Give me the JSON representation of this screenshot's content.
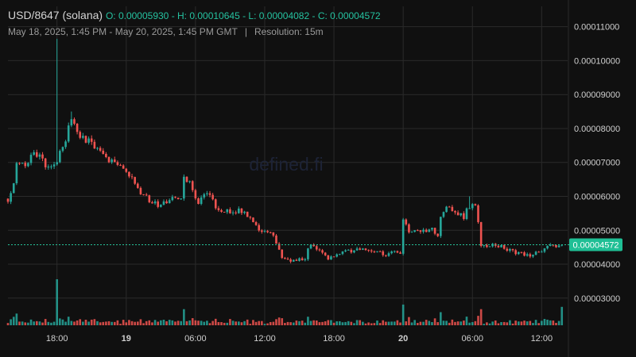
{
  "header": {
    "symbol": "USD/8647 (solana)",
    "ohlc": "O: 0.00005930 - H: 0.00010645 - L: 0.00004082 - C: 0.00004572",
    "range": "May 18, 2025, 1:45 PM - May 20, 2025, 1:45 PM GMT",
    "separator": "|",
    "resolution": "Resolution: 15m"
  },
  "watermark": "defined.fi",
  "colors": {
    "background": "#101010",
    "grid": "#2a2a2a",
    "up": "#26a69a",
    "down": "#ef5350",
    "price_line": "#26c49a",
    "price_tag": "#1fbf95",
    "axis_text": "#cfcfcf",
    "header_text": "#25c2a0"
  },
  "chart_data": {
    "type": "candlestick",
    "title": "USD/8647 (solana)",
    "resolution": "15m",
    "ylim": [
      2.2e-05,
      0.000116
    ],
    "yticks": [
      3e-05,
      4e-05,
      5e-05,
      6e-05,
      7e-05,
      8e-05,
      9e-05,
      0.0001,
      0.00011
    ],
    "ytick_labels": [
      "0.00003000",
      "0.00004000",
      "0.00005000",
      "0.00006000",
      "0.00007000",
      "0.00008000",
      "0.00009000",
      "0.00010000",
      "0.00011000"
    ],
    "xlim": [
      "2025-05-18T13:45",
      "2025-05-20T14:15"
    ],
    "xticks": [
      {
        "t": "2025-05-18T18:00",
        "label": "18:00",
        "bold": false
      },
      {
        "t": "2025-05-19T00:00",
        "label": "19",
        "bold": true
      },
      {
        "t": "2025-05-19T06:00",
        "label": "06:00",
        "bold": false
      },
      {
        "t": "2025-05-19T12:00",
        "label": "12:00",
        "bold": false
      },
      {
        "t": "2025-05-19T18:00",
        "label": "18:00",
        "bold": false
      },
      {
        "t": "2025-05-20T00:00",
        "label": "20",
        "bold": true
      },
      {
        "t": "2025-05-20T06:00",
        "label": "06:00",
        "bold": false
      },
      {
        "t": "2025-05-20T12:00",
        "label": "12:00",
        "bold": false
      }
    ],
    "last_price": 4.572e-05,
    "last_price_label": "0.00004572",
    "grid": true,
    "anchor_points": [
      [
        "2025-05-18T13:45",
        5.93e-05
      ],
      [
        "2025-05-18T14:15",
        6.4e-05
      ],
      [
        "2025-05-18T14:30",
        7e-05
      ],
      [
        "2025-05-18T15:15",
        6.9e-05
      ],
      [
        "2025-05-18T15:45",
        7.2e-05
      ],
      [
        "2025-05-18T16:30",
        7.25e-05
      ],
      [
        "2025-05-18T17:00",
        6.9e-05
      ],
      [
        "2025-05-18T17:30",
        6.85e-05
      ],
      [
        "2025-05-18T18:00",
        7.05e-05
      ],
      [
        "2025-05-18T18:15",
        7.4e-05
      ],
      [
        "2025-05-18T18:45",
        7.7e-05
      ],
      [
        "2025-05-18T19:15",
        8.3e-05
      ],
      [
        "2025-05-18T19:45",
        7.9e-05
      ],
      [
        "2025-05-18T20:15",
        7.7e-05
      ],
      [
        "2025-05-18T21:00",
        7.6e-05
      ],
      [
        "2025-05-18T22:00",
        7.2e-05
      ],
      [
        "2025-05-18T23:15",
        6.9e-05
      ],
      [
        "2025-05-19T00:15",
        6.6e-05
      ],
      [
        "2025-05-19T00:45",
        6.4e-05
      ],
      [
        "2025-05-19T01:15",
        6.1e-05
      ],
      [
        "2025-05-19T02:00",
        5.9e-05
      ],
      [
        "2025-05-19T02:45",
        5.75e-05
      ],
      [
        "2025-05-19T03:15",
        5.85e-05
      ],
      [
        "2025-05-19T04:00",
        5.9e-05
      ],
      [
        "2025-05-19T04:45",
        6e-05
      ],
      [
        "2025-05-19T05:00",
        6.6e-05
      ],
      [
        "2025-05-19T05:30",
        6.4e-05
      ],
      [
        "2025-05-19T06:00",
        6e-05
      ],
      [
        "2025-05-19T06:15",
        5.7e-05
      ],
      [
        "2025-05-19T06:30",
        6e-05
      ],
      [
        "2025-05-19T07:15",
        6.1e-05
      ],
      [
        "2025-05-19T07:45",
        5.7e-05
      ],
      [
        "2025-05-19T08:30",
        5.55e-05
      ],
      [
        "2025-05-19T09:15",
        5.6e-05
      ],
      [
        "2025-05-19T10:00",
        5.55e-05
      ],
      [
        "2025-05-19T10:45",
        5.3e-05
      ],
      [
        "2025-05-19T11:15",
        5.1e-05
      ],
      [
        "2025-05-19T11:45",
        4.9e-05
      ],
      [
        "2025-05-19T12:30",
        4.95e-05
      ],
      [
        "2025-05-19T13:00",
        4.6e-05
      ],
      [
        "2025-05-19T13:30",
        4.2e-05
      ],
      [
        "2025-05-19T14:30",
        4.1e-05
      ],
      [
        "2025-05-19T15:30",
        4.2e-05
      ],
      [
        "2025-05-19T16:00",
        4.6e-05
      ],
      [
        "2025-05-19T16:45",
        4.45e-05
      ],
      [
        "2025-05-19T17:30",
        4.2e-05
      ],
      [
        "2025-05-19T18:30",
        4.3e-05
      ],
      [
        "2025-05-19T19:30",
        4.4e-05
      ],
      [
        "2025-05-19T20:30",
        4.45e-05
      ],
      [
        "2025-05-19T21:30",
        4.4e-05
      ],
      [
        "2025-05-19T22:30",
        4.3e-05
      ],
      [
        "2025-05-19T23:45",
        4.35e-05
      ],
      [
        "2025-05-20T00:00",
        5.25e-05
      ],
      [
        "2025-05-20T00:30",
        4.95e-05
      ],
      [
        "2025-05-20T01:30",
        5e-05
      ],
      [
        "2025-05-20T02:30",
        5.05e-05
      ],
      [
        "2025-05-20T03:00",
        4.8e-05
      ],
      [
        "2025-05-20T03:15",
        5.4e-05
      ],
      [
        "2025-05-20T03:45",
        5.65e-05
      ],
      [
        "2025-05-20T04:30",
        5.6e-05
      ],
      [
        "2025-05-20T05:15",
        5.35e-05
      ],
      [
        "2025-05-20T05:30",
        5.7e-05
      ],
      [
        "2025-05-20T06:15",
        5.75e-05
      ],
      [
        "2025-05-20T06:45",
        4.6e-05
      ],
      [
        "2025-05-20T07:30",
        4.55e-05
      ],
      [
        "2025-05-20T08:30",
        4.55e-05
      ],
      [
        "2025-05-20T09:00",
        4.4e-05
      ],
      [
        "2025-05-20T10:00",
        4.35e-05
      ],
      [
        "2025-05-20T11:00",
        4.25e-05
      ],
      [
        "2025-05-20T12:00",
        4.4e-05
      ],
      [
        "2025-05-20T12:30",
        4.5e-05
      ],
      [
        "2025-05-20T13:45",
        4.57e-05
      ]
    ],
    "wick_spikes": [
      [
        "2025-05-18T18:00",
        0.00010645
      ],
      [
        "2025-05-18T19:15",
        8.5e-05
      ],
      [
        "2025-05-20T05:45",
        6e-05
      ]
    ],
    "volume_spikes": [
      [
        "2025-05-18T18:00",
        1.0
      ],
      [
        "2025-05-20T00:00",
        0.45
      ],
      [
        "2025-05-20T13:45",
        0.4
      ],
      [
        "2025-05-19T05:00",
        0.35
      ],
      [
        "2025-05-20T06:45",
        0.35
      ]
    ]
  }
}
